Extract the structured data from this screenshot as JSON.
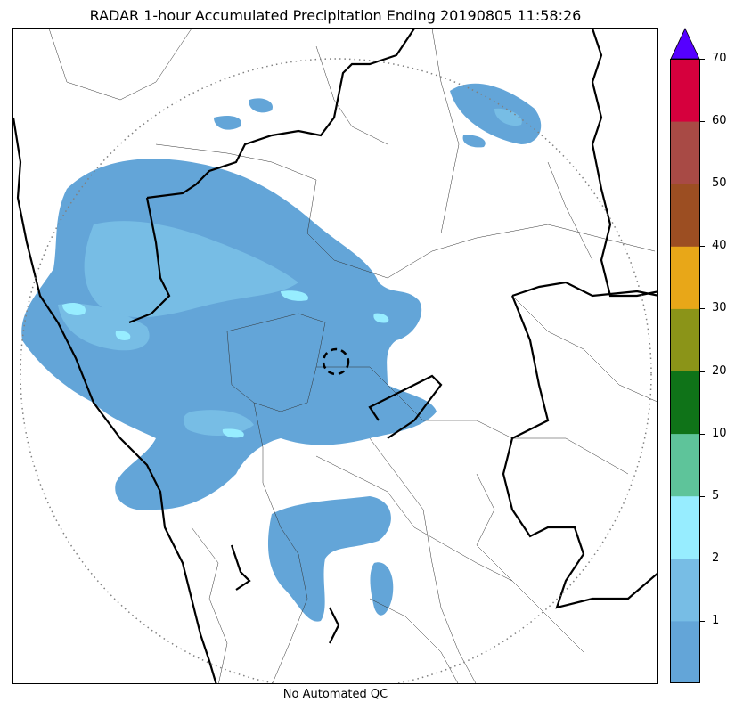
{
  "title": "RADAR 1-hour Accumulated Precipitation Ending 20190805 11:58:26",
  "xlabel": "No Automated QC",
  "colorbar": {
    "extend_color": "#5500ff",
    "colors": [
      "#63a5d8",
      "#77bde5",
      "#97edff",
      "#5ec49a",
      "#0f7318",
      "#8b9418",
      "#e8a718",
      "#9c4e22",
      "#a84a45",
      "#d6003d"
    ],
    "tick_labels": [
      "1",
      "2",
      "5",
      "10",
      "20",
      "30",
      "40",
      "50",
      "60",
      "70"
    ]
  },
  "map": {
    "precip_colors": {
      "light": "#63a5d8",
      "moderate": "#77bde5",
      "heavy": "#97edff"
    },
    "range_ring": "dotted",
    "radar_site_marker": "dashed-circle"
  }
}
